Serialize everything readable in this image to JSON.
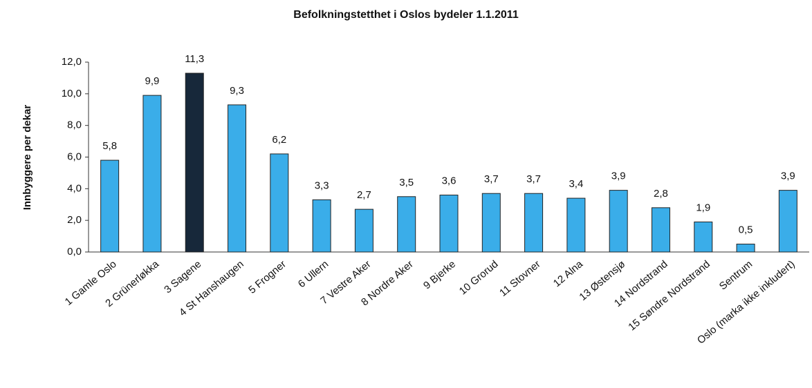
{
  "chart_data": {
    "type": "bar",
    "title": "Befolkningstetthet i Oslos bydeler 1.1.2011",
    "y_label": "Innbyggere per dekar",
    "categories": [
      "1 Gamle Oslo",
      "2 Grünerløkka",
      "3 Sagene",
      "4 St Hanshaugen",
      "5 Frogner",
      "6 Ullern",
      "7 Vestre Aker",
      "8 Nordre Aker",
      "9 Bjerke",
      "10 Grorud",
      "11 Stovner",
      "12 Alna",
      "13 Østensjø",
      "14 Nordstrand",
      "15 Søndre Nordstrand",
      "Sentrum",
      "Oslo (marka ikke inkludert)"
    ],
    "values": [
      5.8,
      9.9,
      11.3,
      9.3,
      6.2,
      3.3,
      2.7,
      3.5,
      3.6,
      3.7,
      3.7,
      3.4,
      3.9,
      2.8,
      1.9,
      0.5,
      3.9
    ],
    "value_labels": [
      "5,8",
      "9,9",
      "11,3",
      "9,3",
      "6,2",
      "3,3",
      "2,7",
      "3,5",
      "3,6",
      "3,7",
      "3,7",
      "3,4",
      "3,9",
      "2,8",
      "1,9",
      "0,5",
      "3,9"
    ],
    "colors": [
      "#3aade9",
      "#3aade9",
      "#17283a",
      "#3aade9",
      "#3aade9",
      "#3aade9",
      "#3aade9",
      "#3aade9",
      "#3aade9",
      "#3aade9",
      "#3aade9",
      "#3aade9",
      "#3aade9",
      "#3aade9",
      "#3aade9",
      "#3aade9",
      "#3aade9"
    ],
    "ylim": [
      0,
      12
    ],
    "yticks": [
      {
        "value": 0,
        "label": "0,0"
      },
      {
        "value": 2,
        "label": "2,0"
      },
      {
        "value": 4,
        "label": "4,0"
      },
      {
        "value": 6,
        "label": "6,0"
      },
      {
        "value": 8,
        "label": "8,0"
      },
      {
        "value": 10,
        "label": "10,0"
      },
      {
        "value": 12,
        "label": "12,0"
      }
    ],
    "grid": false
  }
}
